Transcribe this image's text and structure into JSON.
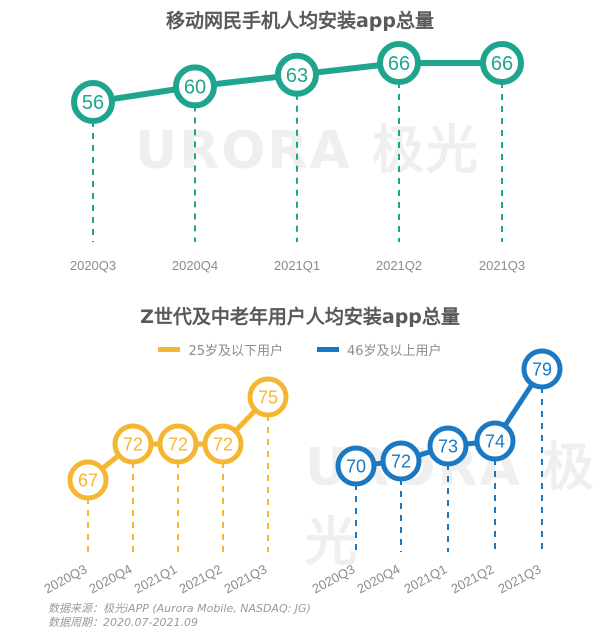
{
  "chart_data": [
    {
      "type": "line",
      "title": "移动网民手机人均安装app总量",
      "categories": [
        "2020Q3",
        "2020Q4",
        "2021Q1",
        "2021Q2",
        "2021Q3"
      ],
      "values": [
        56,
        60,
        63,
        66,
        66
      ],
      "color": "#1fa58e",
      "xlabel": "",
      "ylabel": "",
      "grid": false
    },
    {
      "type": "line",
      "title": "Z世代及中老年用户人均安装app总量",
      "categories": [
        "2020Q3",
        "2020Q4",
        "2021Q1",
        "2021Q2",
        "2021Q3"
      ],
      "series": [
        {
          "name": "25岁及以下用户",
          "values": [
            67,
            72,
            72,
            72,
            75
          ],
          "color": "#f5b731"
        },
        {
          "name": "46岁及以上用户",
          "values": [
            70,
            72,
            73,
            74,
            79
          ],
          "color": "#1a79c2"
        }
      ],
      "legend_position": "top",
      "grid": false
    }
  ],
  "watermark": "URORA 极光",
  "footer": {
    "source": "数据来源：极光iAPP (Aurora Mobile, NASDAQ: JG)",
    "period": "数据周期：2020.07-2021.09"
  }
}
